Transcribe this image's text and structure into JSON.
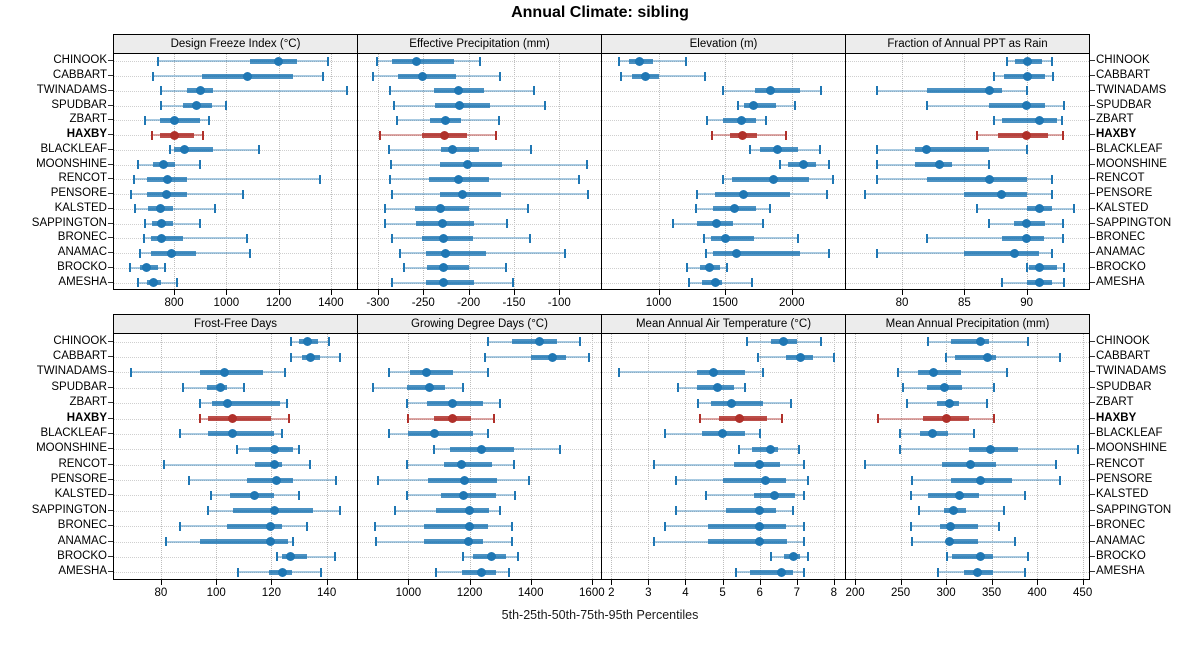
{
  "title": "Annual Climate: sibling",
  "caption": "5th-25th-50th-75th-95th Percentiles",
  "highlight_site": "HAXBY",
  "colors": {
    "blue": "#1f77b4",
    "blue_light": "rgba(31,119,180,0.38)",
    "blue_bar": "rgba(31,119,180,0.8)",
    "red": "#b0302a",
    "red_light": "rgba(176,48,42,0.42)",
    "red_bar": "rgba(176,48,42,0.85)",
    "strip_bg": "#ececec",
    "panel_border": "#000000",
    "grid": "#c8c8c8"
  },
  "sites": [
    "CHINOOK",
    "CABBART",
    "TWINADAMS",
    "SPUDBAR",
    "ZBART",
    "HAXBY",
    "BLACKLEAF",
    "MOONSHINE",
    "RENCOT",
    "PENSORE",
    "KALSTED",
    "SAPPINGTON",
    "BRONEC",
    "ANAMAC",
    "BROCKO",
    "AMESHA"
  ],
  "chart_data": {
    "type": "dotplot-percentile-intervals",
    "percentiles": [
      5,
      25,
      50,
      75,
      95
    ],
    "layout": "2 rows x 4 columns of panels, sites on y axis, value on x axis",
    "legend_note": "thin line = 5th-95th, thick line = 25th-75th, dot = median; HAXBY highlighted red",
    "panels": [
      {
        "title": "Design Freeze Index (°C)",
        "row": 0,
        "col": 0,
        "xlim": [
          570,
          1500
        ],
        "ticks": [
          800,
          1000,
          1200,
          1400
        ],
        "values": [
          [
            740,
            1090,
            1200,
            1270,
            1390
          ],
          [
            720,
            905,
            1080,
            1255,
            1370
          ],
          [
            750,
            850,
            900,
            950,
            1460
          ],
          [
            750,
            835,
            885,
            945,
            1000
          ],
          [
            690,
            745,
            800,
            900,
            935
          ],
          [
            715,
            745,
            800,
            875,
            910
          ],
          [
            785,
            800,
            840,
            950,
            1125
          ],
          [
            660,
            720,
            760,
            803,
            900
          ],
          [
            645,
            695,
            775,
            848,
            1360
          ],
          [
            635,
            695,
            770,
            850,
            1065
          ],
          [
            650,
            700,
            747,
            797,
            955
          ],
          [
            690,
            715,
            752,
            797,
            900
          ],
          [
            685,
            710,
            752,
            835,
            1080
          ],
          [
            670,
            710,
            790,
            885,
            1090
          ],
          [
            630,
            670,
            695,
            740,
            765
          ],
          [
            660,
            695,
            722,
            748,
            810
          ]
        ]
      },
      {
        "title": "Effective Precipitation (mm)",
        "row": 0,
        "col": 1,
        "xlim": [
          -322,
          -54
        ],
        "ticks": [
          -300,
          -250,
          -200,
          -150,
          -100
        ],
        "values": [
          [
            -301,
            -284,
            -257,
            -216,
            -188
          ],
          [
            -305,
            -278,
            -251,
            -214,
            -165
          ],
          [
            -287,
            -238,
            -211,
            -183,
            -128
          ],
          [
            -282,
            -237,
            -210,
            -176,
            -116
          ],
          [
            -279,
            -243,
            -226,
            -208,
            -167
          ],
          [
            -298,
            -251,
            -227,
            -202,
            -170
          ],
          [
            -288,
            -231,
            -218,
            -189,
            -131
          ],
          [
            -286,
            -232,
            -201,
            -163,
            -69
          ],
          [
            -287,
            -244,
            -211,
            -178,
            -78
          ],
          [
            -284,
            -232,
            -207,
            -164,
            -68
          ],
          [
            -292,
            -259,
            -231,
            -200,
            -135
          ],
          [
            -292,
            -258,
            -229,
            -194,
            -158
          ],
          [
            -284,
            -251,
            -228,
            -195,
            -132
          ],
          [
            -276,
            -247,
            -226,
            -181,
            -94
          ],
          [
            -271,
            -246,
            -228,
            -200,
            -159
          ],
          [
            -284,
            -247,
            -228,
            -194,
            -151
          ]
        ]
      },
      {
        "title": "Elevation (m)",
        "row": 0,
        "col": 2,
        "xlim": [
          575,
          2400
        ],
        "ticks": [
          1000,
          1500,
          2000
        ],
        "values": [
          [
            700,
            775,
            860,
            960,
            1205
          ],
          [
            715,
            800,
            900,
            1000,
            1350
          ],
          [
            1480,
            1725,
            1840,
            2060,
            2220
          ],
          [
            1600,
            1640,
            1715,
            1885,
            2025
          ],
          [
            1360,
            1480,
            1625,
            1730,
            1810
          ],
          [
            1400,
            1540,
            1630,
            1740,
            1955
          ],
          [
            1690,
            1760,
            1895,
            2050,
            2210
          ],
          [
            1910,
            1975,
            2085,
            2180,
            2280
          ],
          [
            1480,
            1550,
            1860,
            2130,
            2310
          ],
          [
            1285,
            1425,
            1635,
            1985,
            2265
          ],
          [
            1280,
            1410,
            1570,
            1735,
            1840
          ],
          [
            1105,
            1285,
            1435,
            1560,
            1785
          ],
          [
            1340,
            1395,
            1505,
            1715,
            2050
          ],
          [
            1355,
            1410,
            1585,
            2060,
            2280
          ],
          [
            1215,
            1310,
            1385,
            1460,
            1515
          ],
          [
            1230,
            1325,
            1425,
            1480,
            1700
          ]
        ]
      },
      {
        "title": "Fraction of Annual PPT as Rain",
        "row": 0,
        "col": 3,
        "xlim": [
          75.5,
          95
        ],
        "ticks": [
          80,
          85,
          90
        ],
        "values": [
          [
            88.4,
            89.1,
            90.1,
            91.2,
            92
          ],
          [
            87.4,
            88.2,
            90.1,
            91.5,
            92.1
          ],
          [
            78,
            82,
            87,
            88,
            90
          ],
          [
            82,
            87,
            90,
            91.5,
            93
          ],
          [
            87.4,
            88,
            91,
            92.4,
            92.8
          ],
          [
            86,
            87.7,
            90,
            91.7,
            92.9
          ],
          [
            78,
            81,
            82,
            87,
            90
          ],
          [
            78,
            81,
            83,
            84,
            87
          ],
          [
            78,
            82,
            87,
            90,
            92
          ],
          [
            77,
            85,
            88,
            90,
            92
          ],
          [
            86,
            90,
            91,
            92,
            93.8
          ],
          [
            87,
            89,
            90,
            91.5,
            92.9
          ],
          [
            82,
            88,
            90,
            91.4,
            92.9
          ],
          [
            78,
            85,
            89,
            91,
            92
          ],
          [
            90,
            90.2,
            91,
            92.4,
            93
          ],
          [
            88,
            90,
            91,
            92,
            93
          ]
        ]
      },
      {
        "title": "Frost-Free Days",
        "row": 1,
        "col": 0,
        "xlim": [
          63,
          151
        ],
        "ticks": [
          80,
          100,
          120,
          140
        ],
        "values": [
          [
            127,
            130,
            133,
            137,
            141
          ],
          [
            127,
            131,
            134,
            137.5,
            145
          ],
          [
            69,
            94,
            103,
            117,
            125
          ],
          [
            88,
            96.5,
            101.5,
            104,
            110
          ],
          [
            94,
            98.5,
            104,
            123,
            125.5
          ],
          [
            94,
            97,
            106,
            120,
            126.5
          ],
          [
            87,
            97,
            106,
            121,
            124
          ],
          [
            107.5,
            112,
            121,
            128,
            130
          ],
          [
            81,
            114,
            121,
            124,
            134
          ],
          [
            90,
            111,
            122,
            128,
            143.5
          ],
          [
            98,
            105,
            114,
            121,
            130
          ],
          [
            97,
            106,
            121,
            135,
            145
          ],
          [
            87,
            104,
            119.5,
            124,
            133
          ],
          [
            82,
            94,
            119.5,
            126,
            128
          ],
          [
            122,
            124,
            127,
            133,
            143
          ],
          [
            108,
            119,
            124,
            127.5,
            138
          ]
        ]
      },
      {
        "title": "Growing Degree Days (°C)",
        "row": 1,
        "col": 1,
        "xlim": [
          835,
          1630
        ],
        "ticks": [
          1000,
          1200,
          1400,
          1600
        ],
        "values": [
          [
            1260,
            1340,
            1430,
            1485,
            1560
          ],
          [
            1250,
            1400,
            1470,
            1515,
            1590
          ],
          [
            935,
            1005,
            1060,
            1145,
            1260
          ],
          [
            885,
            995,
            1070,
            1120,
            1180
          ],
          [
            995,
            1060,
            1145,
            1245,
            1300
          ],
          [
            1000,
            1085,
            1145,
            1205,
            1280
          ],
          [
            935,
            1000,
            1085,
            1210,
            1260
          ],
          [
            1085,
            1135,
            1240,
            1345,
            1495
          ],
          [
            995,
            1115,
            1175,
            1275,
            1345
          ],
          [
            900,
            1065,
            1185,
            1290,
            1395
          ],
          [
            995,
            1105,
            1180,
            1285,
            1350
          ],
          [
            955,
            1090,
            1200,
            1265,
            1300
          ],
          [
            890,
            1050,
            1200,
            1260,
            1340
          ],
          [
            895,
            1050,
            1195,
            1245,
            1340
          ],
          [
            1180,
            1210,
            1273,
            1320,
            1360
          ],
          [
            1090,
            1175,
            1240,
            1285,
            1330
          ]
        ]
      },
      {
        "title": "Mean Annual Air Temperature (°C)",
        "row": 1,
        "col": 2,
        "xlim": [
          1.75,
          8.3
        ],
        "ticks": [
          2,
          3,
          4,
          5,
          6,
          7,
          8
        ],
        "values": [
          [
            5.65,
            6.3,
            6.65,
            7,
            7.65
          ],
          [
            5.95,
            6.7,
            7.1,
            7.45,
            8
          ],
          [
            2.2,
            4.3,
            4.75,
            5.6,
            6.1
          ],
          [
            3.8,
            4.3,
            4.85,
            5.3,
            5.6
          ],
          [
            4.35,
            4.7,
            5.25,
            6.1,
            6.85
          ],
          [
            4.4,
            4.9,
            5.45,
            6.2,
            6.6
          ],
          [
            3.45,
            4.45,
            5,
            5.6,
            6
          ],
          [
            5.45,
            5.8,
            6.3,
            6.5,
            7.05
          ],
          [
            3.15,
            5.3,
            6,
            6.55,
            7.2
          ],
          [
            3.75,
            5,
            6.15,
            6.7,
            7.3
          ],
          [
            4.55,
            5.85,
            6.4,
            6.95,
            7.2
          ],
          [
            3.75,
            5.1,
            6,
            6.45,
            6.9
          ],
          [
            3.45,
            4.6,
            6,
            6.7,
            7.2
          ],
          [
            3.15,
            4.6,
            6,
            6.75,
            7.2
          ],
          [
            6.3,
            6.65,
            6.9,
            7.1,
            7.3
          ],
          [
            5.35,
            5.75,
            6.6,
            6.9,
            7.2
          ]
        ]
      },
      {
        "title": "Mean Annual Precipitation (mm)",
        "row": 1,
        "col": 3,
        "xlim": [
          190,
          457
        ],
        "ticks": [
          200,
          250,
          300,
          350,
          400,
          450
        ],
        "values": [
          [
            280,
            305,
            338,
            347,
            390
          ],
          [
            300,
            310,
            345,
            355,
            425
          ],
          [
            247,
            269,
            286,
            316,
            367
          ],
          [
            253,
            279,
            298,
            318,
            353
          ],
          [
            257,
            290,
            304,
            314,
            345
          ],
          [
            225,
            275,
            300,
            325,
            353
          ],
          [
            249,
            271,
            285,
            302,
            331
          ],
          [
            249,
            325,
            349,
            379,
            445
          ],
          [
            211,
            295,
            327,
            355,
            421
          ],
          [
            262,
            305,
            338,
            372,
            425
          ],
          [
            261,
            280,
            315,
            336,
            387
          ],
          [
            270,
            298,
            308,
            322,
            364
          ],
          [
            261,
            293,
            305,
            335,
            358
          ],
          [
            263,
            300,
            304,
            335,
            376
          ],
          [
            301,
            307,
            338,
            351,
            390
          ],
          [
            291,
            320,
            335,
            351,
            387
          ]
        ]
      }
    ]
  }
}
